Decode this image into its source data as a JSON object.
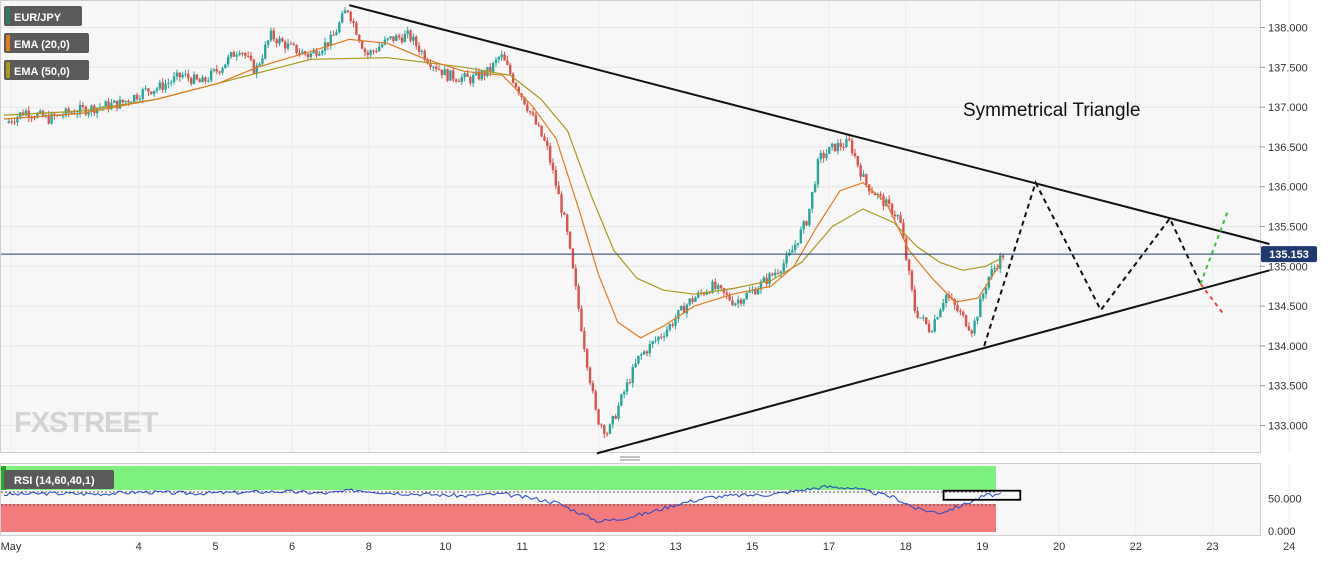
{
  "legend": [
    {
      "label": "EUR/JPY",
      "swatch": "#2e7d68"
    },
    {
      "label": "EMA (20,0)",
      "swatch": "#e07b20"
    },
    {
      "label": "EMA (50,0)",
      "swatch": "#a89a1c"
    }
  ],
  "annotation": "Symmetrical Triangle",
  "watermark": "FXSTREET",
  "current_price_label": "135.153",
  "rsi_label": "RSI (14,60,40,1)",
  "colors": {
    "up_candle": "#26a69a",
    "down_candle": "#d9534f",
    "ema20": "#e07b20",
    "ema50": "#a89a1c",
    "rsi_line": "#2244cc",
    "rsi_over": "#7df07d",
    "rsi_under": "#f47b7b",
    "price_tag": "#1f3a70"
  },
  "chart_data": [
    {
      "type": "candlestick",
      "title": "",
      "series": [
        {
          "name": "EUR/JPY"
        },
        {
          "name": "EMA (20,0)"
        },
        {
          "name": "EMA (50,0)"
        }
      ],
      "x_ticks": [
        "May",
        "4",
        "5",
        "6",
        "8",
        "10",
        "11",
        "12",
        "13",
        "15",
        "17",
        "18",
        "19",
        "20",
        "22",
        "23",
        "24"
      ],
      "x_tick_index": [
        0,
        1,
        2,
        3,
        4,
        5,
        6,
        7,
        8,
        9,
        10,
        11,
        12,
        13,
        14,
        15,
        16
      ],
      "y_ticks": [
        "133.000",
        "133.500",
        "134.000",
        "134.500",
        "135.000",
        "135.500",
        "136.000",
        "136.500",
        "137.000",
        "137.500",
        "138.000"
      ],
      "ylim": [
        132.65,
        138.35
      ],
      "current_price": 135.153,
      "close_path": [
        [
          0.0,
          136.8
        ],
        [
          0.25,
          136.95
        ],
        [
          0.55,
          136.85
        ],
        [
          0.9,
          136.95
        ],
        [
          1.2,
          137.0
        ],
        [
          1.5,
          137.05
        ],
        [
          1.8,
          137.2
        ],
        [
          2.0,
          137.25
        ],
        [
          2.3,
          137.4
        ],
        [
          2.55,
          137.3
        ],
        [
          2.8,
          137.5
        ],
        [
          3.05,
          137.75
        ],
        [
          3.25,
          137.45
        ],
        [
          3.45,
          137.9
        ],
        [
          3.7,
          137.75
        ],
        [
          3.95,
          137.65
        ],
        [
          4.25,
          137.85
        ],
        [
          4.45,
          138.25
        ],
        [
          4.7,
          137.65
        ],
        [
          5.0,
          137.85
        ],
        [
          5.25,
          137.9
        ],
        [
          5.5,
          137.6
        ],
        [
          5.75,
          137.4
        ],
        [
          6.05,
          137.35
        ],
        [
          6.3,
          137.45
        ],
        [
          6.45,
          137.65
        ],
        [
          6.75,
          137.1
        ],
        [
          7.05,
          136.5
        ],
        [
          7.3,
          135.5
        ],
        [
          7.55,
          133.95
        ],
        [
          7.7,
          133.1
        ],
        [
          7.85,
          132.9
        ],
        [
          8.05,
          133.4
        ],
        [
          8.25,
          133.85
        ],
        [
          8.45,
          134.05
        ],
        [
          8.65,
          134.25
        ],
        [
          8.9,
          134.55
        ],
        [
          9.2,
          134.75
        ],
        [
          9.5,
          134.55
        ],
        [
          9.75,
          134.7
        ],
        [
          10.0,
          134.9
        ],
        [
          10.2,
          135.1
        ],
        [
          10.45,
          135.6
        ],
        [
          10.6,
          136.35
        ],
        [
          10.8,
          136.5
        ],
        [
          11.0,
          136.55
        ],
        [
          11.2,
          136.05
        ],
        [
          11.45,
          135.8
        ],
        [
          11.65,
          135.6
        ],
        [
          11.85,
          134.45
        ],
        [
          12.05,
          134.2
        ],
        [
          12.25,
          134.65
        ],
        [
          12.4,
          134.45
        ],
        [
          12.6,
          134.2
        ],
        [
          12.8,
          134.85
        ],
        [
          13.0,
          135.15
        ]
      ],
      "ema20_path": [
        [
          0.0,
          136.85
        ],
        [
          1.0,
          136.92
        ],
        [
          2.0,
          137.1
        ],
        [
          2.8,
          137.3
        ],
        [
          3.3,
          137.5
        ],
        [
          4.0,
          137.7
        ],
        [
          4.5,
          137.85
        ],
        [
          5.0,
          137.8
        ],
        [
          5.5,
          137.6
        ],
        [
          6.0,
          137.45
        ],
        [
          6.5,
          137.4
        ],
        [
          6.9,
          137.0
        ],
        [
          7.2,
          136.6
        ],
        [
          7.5,
          135.7
        ],
        [
          7.75,
          134.9
        ],
        [
          8.0,
          134.3
        ],
        [
          8.3,
          134.1
        ],
        [
          8.6,
          134.25
        ],
        [
          9.0,
          134.5
        ],
        [
          9.5,
          134.65
        ],
        [
          10.0,
          134.75
        ],
        [
          10.3,
          135.0
        ],
        [
          10.6,
          135.5
        ],
        [
          10.9,
          135.95
        ],
        [
          11.2,
          136.05
        ],
        [
          11.5,
          135.8
        ],
        [
          11.8,
          135.2
        ],
        [
          12.1,
          134.85
        ],
        [
          12.4,
          134.55
        ],
        [
          12.7,
          134.6
        ],
        [
          13.0,
          135.05
        ]
      ],
      "ema50_path": [
        [
          0.0,
          136.9
        ],
        [
          1.0,
          136.95
        ],
        [
          2.0,
          137.1
        ],
        [
          3.0,
          137.35
        ],
        [
          4.0,
          137.6
        ],
        [
          5.0,
          137.62
        ],
        [
          6.0,
          137.5
        ],
        [
          6.6,
          137.4
        ],
        [
          7.0,
          137.1
        ],
        [
          7.35,
          136.7
        ],
        [
          7.65,
          135.9
        ],
        [
          7.95,
          135.2
        ],
        [
          8.25,
          134.85
        ],
        [
          8.6,
          134.7
        ],
        [
          9.0,
          134.65
        ],
        [
          9.5,
          134.72
        ],
        [
          10.0,
          134.82
        ],
        [
          10.4,
          135.05
        ],
        [
          10.8,
          135.5
        ],
        [
          11.2,
          135.72
        ],
        [
          11.6,
          135.55
        ],
        [
          11.9,
          135.25
        ],
        [
          12.2,
          135.05
        ],
        [
          12.5,
          134.95
        ],
        [
          12.8,
          135.0
        ],
        [
          13.0,
          135.1
        ]
      ],
      "triangle": {
        "upper_line": [
          [
            4.5,
            138.28
          ],
          [
            16.5,
            135.28
          ]
        ],
        "lower_line": [
          [
            7.73,
            132.65
          ],
          [
            16.5,
            134.95
          ]
        ]
      },
      "projection": [
        [
          12.78,
          134.0
        ],
        [
          13.45,
          136.05
        ],
        [
          14.3,
          134.45
        ],
        [
          15.2,
          135.6
        ],
        [
          15.6,
          134.78
        ]
      ],
      "breakout_up": [
        [
          15.6,
          134.78
        ],
        [
          15.95,
          135.68
        ]
      ],
      "breakdown": [
        [
          15.6,
          134.78
        ],
        [
          15.9,
          134.4
        ]
      ]
    },
    {
      "type": "line",
      "title": "",
      "name": "RSI (14,60,40,1)",
      "y_ticks": [
        "0.000",
        "50.000"
      ],
      "ylim": [
        0,
        100
      ],
      "overbought": 60,
      "oversold": 40,
      "values": [
        [
          0.0,
          56
        ],
        [
          0.6,
          58
        ],
        [
          1.2,
          57
        ],
        [
          1.8,
          60
        ],
        [
          2.4,
          58
        ],
        [
          3.0,
          59
        ],
        [
          3.6,
          61
        ],
        [
          4.2,
          58
        ],
        [
          4.6,
          63
        ],
        [
          5.0,
          59
        ],
        [
          5.6,
          56
        ],
        [
          6.0,
          54
        ],
        [
          6.5,
          57
        ],
        [
          6.9,
          50
        ],
        [
          7.2,
          44
        ],
        [
          7.5,
          28
        ],
        [
          7.75,
          15
        ],
        [
          8.0,
          18
        ],
        [
          8.4,
          28
        ],
        [
          8.8,
          42
        ],
        [
          9.2,
          52
        ],
        [
          9.6,
          55
        ],
        [
          10.0,
          56
        ],
        [
          10.4,
          63
        ],
        [
          10.7,
          68
        ],
        [
          11.0,
          67
        ],
        [
          11.3,
          60
        ],
        [
          11.6,
          52
        ],
        [
          11.9,
          34
        ],
        [
          12.2,
          28
        ],
        [
          12.5,
          40
        ],
        [
          12.8,
          55
        ],
        [
          13.0,
          56
        ]
      ],
      "highlight_box": [
        12.25,
        13.25
      ]
    }
  ]
}
